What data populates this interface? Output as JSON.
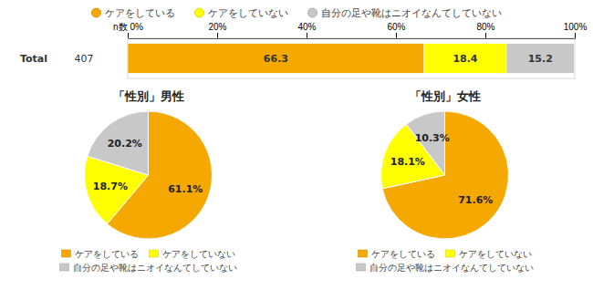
{
  "chart_data": [
    {
      "type": "bar",
      "orientation": "horizontal",
      "stacked": true,
      "categories": [
        "Total"
      ],
      "series": [
        {
          "name": "ケアをしている",
          "color": "#F5A800",
          "values": [
            66.3
          ]
        },
        {
          "name": "ケアをしていない",
          "color": "#FFFF00",
          "values": [
            18.4
          ]
        },
        {
          "name": "自分の足や靴はニオイなんてしていない",
          "color": "#C8C8C8",
          "values": [
            15.2
          ]
        }
      ],
      "annotations": [
        "407"
      ],
      "xlim": [
        0,
        100
      ],
      "xticks": [
        {
          "value": 0,
          "label": "n数 0%"
        },
        {
          "value": 20,
          "label": "20%"
        },
        {
          "value": 40,
          "label": "40%"
        },
        {
          "value": 60,
          "label": "60%"
        },
        {
          "value": 80,
          "label": "80%"
        },
        {
          "value": 100,
          "label": "100%"
        }
      ],
      "data_labels": true,
      "legend": "top"
    },
    {
      "type": "pie",
      "title": "「性別」男性",
      "categories": [
        "ケアをしている",
        "ケアをしていない",
        "自分の足や靴はニオイなんてしていない"
      ],
      "values": [
        61.1,
        18.7,
        20.2
      ],
      "value_labels": [
        "61.1%",
        "18.7%",
        "20.2%"
      ],
      "colors": [
        "#F5A800",
        "#FFFF00",
        "#C8C8C8"
      ],
      "data_labels": true,
      "legend": "bottom"
    },
    {
      "type": "pie",
      "title": "「性別」女性",
      "categories": [
        "ケアをしている",
        "ケアをしていない",
        "自分の足や靴はニオイなんてしていない"
      ],
      "values": [
        71.6,
        18.1,
        10.3
      ],
      "value_labels": [
        "71.6%",
        "18.1%",
        "10.3%"
      ],
      "colors": [
        "#F5A800",
        "#FFFF00",
        "#C8C8C8"
      ],
      "data_labels": true,
      "legend": "bottom"
    }
  ]
}
